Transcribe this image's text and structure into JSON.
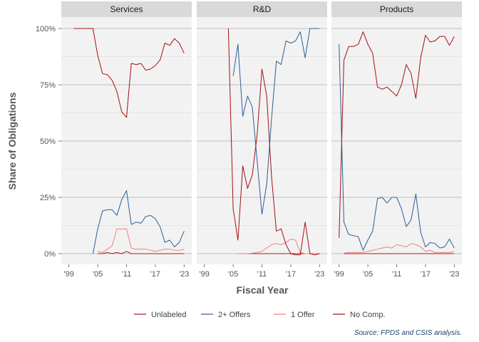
{
  "chart_data": {
    "type": "line",
    "ylabel": "Share of Obligations",
    "xlabel": "Fiscal Year",
    "ylim": [
      0,
      1
    ],
    "xlim": [
      1998,
      2024
    ],
    "y_ticks": [
      {
        "value": 0,
        "label": "0%"
      },
      {
        "value": 0.25,
        "label": "25%"
      },
      {
        "value": 0.5,
        "label": "50%"
      },
      {
        "value": 0.75,
        "label": "75%"
      },
      {
        "value": 1.0,
        "label": "100%"
      }
    ],
    "x_ticks": [
      {
        "value": 1999,
        "label": "'99"
      },
      {
        "value": 2005,
        "label": "'05"
      },
      {
        "value": 2011,
        "label": "'11"
      },
      {
        "value": 2017,
        "label": "'17"
      },
      {
        "value": 2023,
        "label": "'23"
      }
    ],
    "grid": true,
    "legend_position": "bottom",
    "caption": "Source: FPDS and CSIS analysis.",
    "series_styles": [
      {
        "name": "Unlabeled",
        "color": "#b2182b"
      },
      {
        "name": "2+ Offers",
        "color": "#2c5f96"
      },
      {
        "name": "1 Offer",
        "color": "#f08080"
      },
      {
        "name": "No Comp.",
        "color": "#a50f15"
      }
    ],
    "panels": [
      {
        "title": "Services",
        "series": [
          {
            "name": "No Comp.",
            "x": [
              2000,
              2001,
              2002,
              2003,
              2004,
              2005,
              2006,
              2007,
              2008,
              2009,
              2010,
              2011,
              2012,
              2013,
              2014,
              2015,
              2016,
              2017,
              2018,
              2019,
              2020,
              2021,
              2022,
              2023
            ],
            "values": [
              1.0,
              1.0,
              1.0,
              1.0,
              1.0,
              0.88,
              0.8,
              0.795,
              0.77,
              0.72,
              0.63,
              0.605,
              0.845,
              0.84,
              0.845,
              0.815,
              0.82,
              0.835,
              0.86,
              0.935,
              0.925,
              0.955,
              0.935,
              0.89
            ]
          },
          {
            "name": "2+ Offers",
            "x": [
              2004,
              2005,
              2006,
              2007,
              2008,
              2009,
              2010,
              2011,
              2012,
              2013,
              2014,
              2015,
              2016,
              2017,
              2018,
              2019,
              2020,
              2021,
              2022,
              2023
            ],
            "values": [
              0.0,
              0.11,
              0.19,
              0.195,
              0.195,
              0.17,
              0.24,
              0.28,
              0.13,
              0.14,
              0.135,
              0.165,
              0.17,
              0.155,
              0.12,
              0.05,
              0.06,
              0.03,
              0.05,
              0.1
            ]
          },
          {
            "name": "1 Offer",
            "x": [
              2005,
              2006,
              2007,
              2008,
              2009,
              2010,
              2011,
              2012,
              2013,
              2014,
              2015,
              2016,
              2017,
              2018,
              2019,
              2020,
              2021,
              2022,
              2023
            ],
            "values": [
              0.01,
              0.005,
              0.02,
              0.035,
              0.11,
              0.11,
              0.11,
              0.025,
              0.02,
              0.02,
              0.02,
              0.015,
              0.01,
              0.015,
              0.02,
              0.02,
              0.015,
              0.015,
              0.02
            ]
          },
          {
            "name": "Unlabeled",
            "x": [
              2005,
              2006,
              2007,
              2008,
              2009,
              2010,
              2011,
              2012,
              2013,
              2014,
              2015,
              2016,
              2017,
              2018,
              2019,
              2020,
              2021,
              2022,
              2023
            ],
            "values": [
              0.0,
              0.0,
              0.005,
              0.0,
              0.005,
              0.0,
              0.01,
              0.0,
              0.0,
              0.0,
              0.0,
              0.0,
              0.0,
              0.0,
              0.0,
              0.0,
              0.0,
              0.0,
              0.0
            ]
          }
        ]
      },
      {
        "title": "R&D",
        "series": [
          {
            "name": "No Comp.",
            "x": [
              2004,
              2005,
              2006,
              2007,
              2008,
              2009,
              2010,
              2011,
              2012,
              2013,
              2014,
              2015,
              2016,
              2017,
              2018,
              2019,
              2020,
              2021,
              2022,
              2023
            ],
            "values": [
              1.0,
              0.2,
              0.06,
              0.39,
              0.29,
              0.35,
              0.53,
              0.82,
              0.7,
              0.34,
              0.1,
              0.11,
              0.04,
              0.0,
              -0.005,
              -0.005,
              0.14,
              0.0,
              -0.005,
              0.0
            ]
          },
          {
            "name": "2+ Offers",
            "x": [
              2005,
              2006,
              2007,
              2008,
              2009,
              2010,
              2011,
              2012,
              2013,
              2014,
              2015,
              2016,
              2017,
              2018,
              2019,
              2020,
              2021,
              2022,
              2023
            ],
            "values": [
              0.79,
              0.93,
              0.61,
              0.7,
              0.65,
              0.41,
              0.175,
              0.31,
              0.6,
              0.855,
              0.84,
              0.945,
              0.935,
              0.945,
              0.985,
              0.87,
              1.0,
              1.0,
              1.0
            ]
          },
          {
            "name": "1 Offer",
            "x": [
              2006,
              2007,
              2008,
              2009,
              2010,
              2011,
              2012,
              2013,
              2014,
              2015,
              2016,
              2017,
              2018,
              2019,
              2020,
              2021,
              2022,
              2023
            ],
            "values": [
              0.0,
              0.0,
              0.0,
              0.002,
              0.005,
              0.01,
              0.025,
              0.04,
              0.045,
              0.04,
              0.05,
              0.065,
              0.06,
              0.005,
              0.0,
              0.0,
              0.0,
              0.0
            ]
          },
          {
            "name": "Unlabeled",
            "x": [
              2006,
              2007,
              2008,
              2009,
              2010,
              2011,
              2012,
              2013,
              2014,
              2015,
              2016,
              2017,
              2018,
              2019,
              2020,
              2021,
              2022,
              2023
            ],
            "values": [
              0.0,
              0.0,
              0.0,
              0.0,
              0.0,
              0.0,
              0.0,
              0.0,
              0.0,
              0.0,
              0.0,
              0.0,
              0.0,
              0.0,
              0.0,
              0.0,
              0.0,
              0.0
            ]
          }
        ]
      },
      {
        "title": "Products",
        "series": [
          {
            "name": "No Comp.",
            "x": [
              1999,
              2000,
              2001,
              2002,
              2003,
              2004,
              2005,
              2006,
              2007,
              2008,
              2009,
              2010,
              2011,
              2012,
              2013,
              2014,
              2015,
              2016,
              2017,
              2018,
              2019,
              2020,
              2021,
              2022,
              2023
            ],
            "values": [
              0.07,
              0.86,
              0.92,
              0.92,
              0.93,
              0.985,
              0.93,
              0.89,
              0.74,
              0.73,
              0.74,
              0.72,
              0.7,
              0.75,
              0.84,
              0.8,
              0.69,
              0.87,
              0.97,
              0.94,
              0.945,
              0.965,
              0.965,
              0.925,
              0.965
            ]
          },
          {
            "name": "2+ Offers",
            "x": [
              1999,
              2000,
              2001,
              2002,
              2003,
              2004,
              2005,
              2006,
              2007,
              2008,
              2009,
              2010,
              2011,
              2012,
              2013,
              2014,
              2015,
              2016,
              2017,
              2018,
              2019,
              2020,
              2021,
              2022,
              2023
            ],
            "values": [
              0.93,
              0.14,
              0.085,
              0.08,
              0.075,
              0.015,
              0.06,
              0.1,
              0.245,
              0.25,
              0.225,
              0.25,
              0.25,
              0.2,
              0.12,
              0.15,
              0.265,
              0.095,
              0.03,
              0.05,
              0.045,
              0.025,
              0.03,
              0.065,
              0.025
            ]
          },
          {
            "name": "1 Offer",
            "x": [
              2000,
              2001,
              2002,
              2003,
              2004,
              2005,
              2006,
              2007,
              2008,
              2009,
              2010,
              2011,
              2012,
              2013,
              2014,
              2015,
              2016,
              2017,
              2018,
              2019,
              2020,
              2021,
              2022,
              2023
            ],
            "values": [
              0.002,
              0.005,
              0.005,
              0.005,
              0.005,
              0.01,
              0.015,
              0.02,
              0.025,
              0.03,
              0.025,
              0.04,
              0.035,
              0.03,
              0.045,
              0.04,
              0.03,
              0.01,
              0.015,
              0.005,
              0.005,
              0.005,
              0.005,
              0.01
            ]
          },
          {
            "name": "Unlabeled",
            "x": [
              2000,
              2001,
              2002,
              2003,
              2004,
              2005,
              2006,
              2007,
              2008,
              2009,
              2010,
              2011,
              2012,
              2013,
              2014,
              2015,
              2016,
              2017,
              2018,
              2019,
              2020,
              2021,
              2022,
              2023
            ],
            "values": [
              0.0,
              0.0,
              0.0,
              0.0,
              0.0,
              0.0,
              0.0,
              0.0,
              0.0,
              0.0,
              0.0,
              0.0,
              0.0,
              0.0,
              0.0,
              0.0,
              0.0,
              0.0,
              0.0,
              0.0,
              0.0,
              0.0,
              0.0,
              0.0
            ]
          }
        ]
      }
    ]
  }
}
